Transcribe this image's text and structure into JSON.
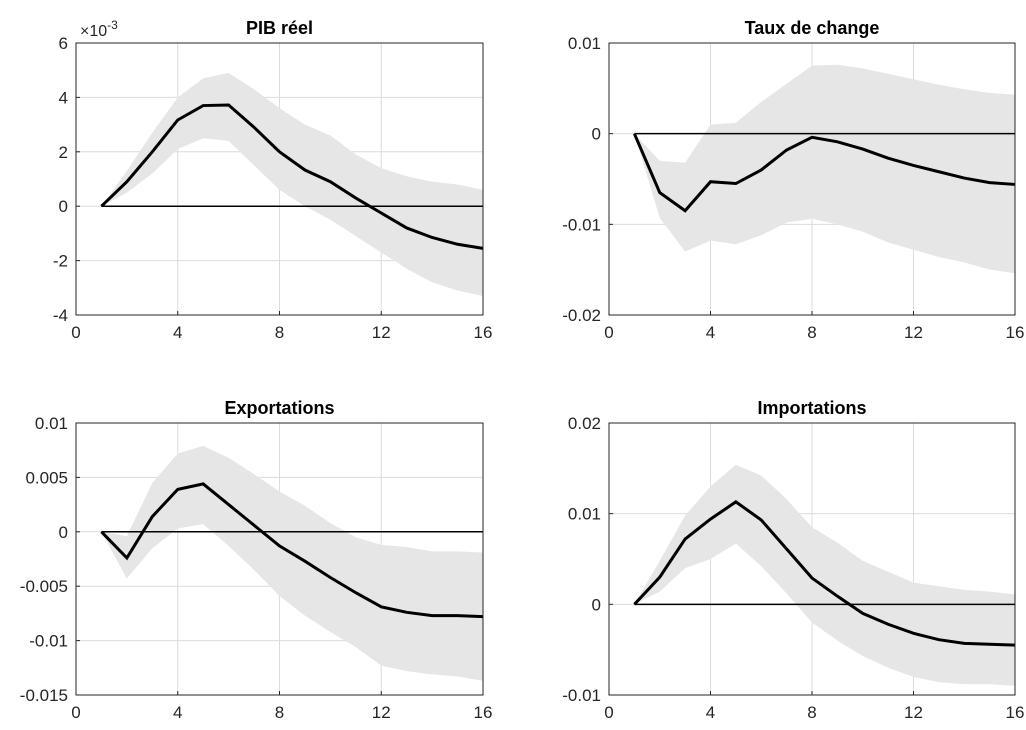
{
  "chart_data": [
    {
      "type": "line",
      "title": "PIB réel",
      "xlabel": "",
      "ylabel": "",
      "xlim": [
        0,
        16
      ],
      "ylim": [
        -0.004,
        0.006
      ],
      "xticks": [
        0,
        4,
        8,
        12,
        16
      ],
      "xtick_labels": [
        "0",
        "4",
        "8",
        "12",
        "16"
      ],
      "yticks": [
        -0.004,
        -0.002,
        0,
        0.002,
        0.004,
        0.006
      ],
      "ytick_labels": [
        "-4",
        "-2",
        "0",
        "2",
        "4",
        "6"
      ],
      "exponent_label": "×10",
      "exponent_power": "-3",
      "grid": true,
      "x": [
        1,
        2,
        3,
        4,
        5,
        6,
        7,
        8,
        9,
        10,
        11,
        12,
        13,
        14,
        15,
        16
      ],
      "series": [
        {
          "role": "response",
          "values": [
            0,
            0.0009,
            0.002,
            0.00317,
            0.0037,
            0.00372,
            0.0029,
            0.002,
            0.00133,
            0.0009,
            0.0003,
            -0.00025,
            -0.0008,
            -0.00115,
            -0.0014,
            -0.00155
          ]
        },
        {
          "role": "upper",
          "values": [
            0,
            0.0013,
            0.0027,
            0.004,
            0.0047,
            0.0049,
            0.0043,
            0.0036,
            0.003,
            0.0026,
            0.0019,
            0.0014,
            0.0011,
            0.0009,
            0.0008,
            0.0006
          ]
        },
        {
          "role": "lower",
          "values": [
            0,
            0.0005,
            0.0012,
            0.0021,
            0.0025,
            0.0024,
            0.0015,
            0.0006,
            0.0,
            -0.0005,
            -0.0011,
            -0.0017,
            -0.0023,
            -0.0028,
            -0.0031,
            -0.0033
          ]
        }
      ]
    },
    {
      "type": "line",
      "title": "Taux de change",
      "xlabel": "",
      "ylabel": "",
      "xlim": [
        0,
        16
      ],
      "ylim": [
        -0.02,
        0.01
      ],
      "xticks": [
        0,
        4,
        8,
        12,
        16
      ],
      "xtick_labels": [
        "0",
        "4",
        "8",
        "12",
        "16"
      ],
      "yticks": [
        -0.02,
        -0.01,
        0,
        0.01
      ],
      "ytick_labels": [
        "-0.02",
        "-0.01",
        "0",
        "0.01"
      ],
      "grid": true,
      "x": [
        1,
        2,
        3,
        4,
        5,
        6,
        7,
        8,
        9,
        10,
        11,
        12,
        13,
        14,
        15,
        16
      ],
      "series": [
        {
          "role": "response",
          "values": [
            0,
            -0.0065,
            -0.0085,
            -0.0053,
            -0.0055,
            -0.004,
            -0.0018,
            -0.0004,
            -0.0009,
            -0.0017,
            -0.0027,
            -0.0035,
            -0.0042,
            -0.0049,
            -0.0054,
            -0.0056
          ]
        },
        {
          "role": "upper",
          "values": [
            0,
            -0.003,
            -0.0032,
            0.001,
            0.0012,
            0.0035,
            0.0055,
            0.0075,
            0.0076,
            0.0072,
            0.0066,
            0.006,
            0.0054,
            0.0049,
            0.0045,
            0.0043
          ]
        },
        {
          "role": "lower",
          "values": [
            0,
            -0.0093,
            -0.013,
            -0.0118,
            -0.0122,
            -0.0112,
            -0.0098,
            -0.0094,
            -0.01,
            -0.0108,
            -0.012,
            -0.0128,
            -0.0136,
            -0.0142,
            -0.015,
            -0.0154
          ]
        }
      ]
    },
    {
      "type": "line",
      "title": "Exportations",
      "xlabel": "",
      "ylabel": "",
      "xlim": [
        0,
        16
      ],
      "ylim": [
        -0.015,
        0.01
      ],
      "xticks": [
        0,
        4,
        8,
        12,
        16
      ],
      "xtick_labels": [
        "0",
        "4",
        "8",
        "12",
        "16"
      ],
      "yticks": [
        -0.015,
        -0.01,
        -0.005,
        0,
        0.005,
        0.01
      ],
      "ytick_labels": [
        "-0.015",
        "-0.01",
        "-0.005",
        "0",
        "0.005",
        "0.01"
      ],
      "grid": true,
      "x": [
        1,
        2,
        3,
        4,
        5,
        6,
        7,
        8,
        9,
        10,
        11,
        12,
        13,
        14,
        15,
        16
      ],
      "series": [
        {
          "role": "response",
          "values": [
            0,
            -0.0024,
            0.0014,
            0.0039,
            0.0044,
            0.0025,
            0.0006,
            -0.0013,
            -0.0027,
            -0.0042,
            -0.0056,
            -0.0069,
            -0.0074,
            -0.0077,
            -0.0077,
            -0.0078
          ]
        },
        {
          "role": "upper",
          "values": [
            0,
            -0.0004,
            0.0045,
            0.0072,
            0.0079,
            0.0068,
            0.0053,
            0.0037,
            0.0024,
            0.0008,
            -0.0005,
            -0.0012,
            -0.0014,
            -0.0018,
            -0.0018,
            -0.0019
          ]
        },
        {
          "role": "lower",
          "values": [
            0,
            -0.0043,
            -0.0015,
            0.0003,
            0.0007,
            -0.0013,
            -0.0035,
            -0.0059,
            -0.0077,
            -0.0092,
            -0.0106,
            -0.0123,
            -0.0128,
            -0.0131,
            -0.0133,
            -0.0137
          ]
        }
      ]
    },
    {
      "type": "line",
      "title": "Importations",
      "xlabel": "",
      "ylabel": "",
      "xlim": [
        0,
        16
      ],
      "ylim": [
        -0.01,
        0.02
      ],
      "xticks": [
        0,
        4,
        8,
        12,
        16
      ],
      "xtick_labels": [
        "0",
        "4",
        "8",
        "12",
        "16"
      ],
      "yticks": [
        -0.01,
        0,
        0.01,
        0.02
      ],
      "ytick_labels": [
        "-0.01",
        "0",
        "0.01",
        "0.02"
      ],
      "grid": true,
      "x": [
        1,
        2,
        3,
        4,
        5,
        6,
        7,
        8,
        9,
        10,
        11,
        12,
        13,
        14,
        15,
        16
      ],
      "series": [
        {
          "role": "response",
          "values": [
            0,
            0.003,
            0.0072,
            0.0094,
            0.0113,
            0.0093,
            0.0061,
            0.0029,
            0.0009,
            -0.001,
            -0.0022,
            -0.0032,
            -0.0039,
            -0.0043,
            -0.0044,
            -0.0045
          ]
        },
        {
          "role": "upper",
          "values": [
            0,
            0.0048,
            0.0098,
            0.013,
            0.0154,
            0.0142,
            0.0116,
            0.0085,
            0.0068,
            0.0048,
            0.0036,
            0.0024,
            0.002,
            0.0016,
            0.0014,
            0.0011
          ]
        },
        {
          "role": "lower",
          "values": [
            0,
            0.0014,
            0.004,
            0.005,
            0.0067,
            0.0042,
            0.0012,
            -0.002,
            -0.004,
            -0.0057,
            -0.007,
            -0.008,
            -0.0086,
            -0.0088,
            -0.0088,
            -0.009
          ]
        }
      ]
    }
  ],
  "colors": {
    "band": "#e6e6e6",
    "grid": "#dcdcdc",
    "line": "#000000",
    "axis": "#262626"
  }
}
